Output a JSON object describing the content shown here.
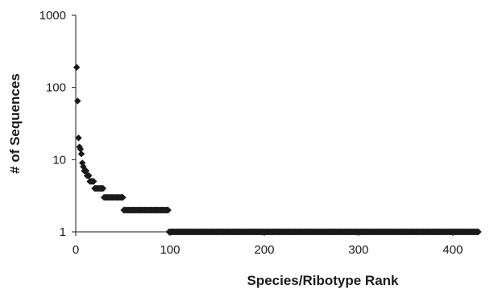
{
  "chart_data": {
    "type": "scatter",
    "title": "",
    "xlabel": "Species/Ribotype Rank",
    "ylabel": "# of Sequences",
    "x_scale": "linear",
    "y_scale": "log",
    "xlim": [
      0,
      430
    ],
    "ylim": [
      1,
      1000
    ],
    "x_ticks": [
      0,
      100,
      200,
      300,
      400
    ],
    "x_tick_labels": [
      "0",
      "100",
      "200",
      "300",
      "400"
    ],
    "y_ticks": [
      1,
      10,
      100,
      1000
    ],
    "y_tick_labels": [
      "1",
      "10",
      "100",
      "1000"
    ],
    "grid": false,
    "legend": "none",
    "marker": "diamond",
    "marker_color": "#1a1a1a",
    "points": [
      {
        "x": 1,
        "y": 190
      },
      {
        "x": 2,
        "y": 65
      },
      {
        "x": 3,
        "y": 20
      },
      {
        "x": 4,
        "y": 15
      },
      {
        "x": 5,
        "y": 14
      },
      {
        "x": 6,
        "y": 12
      },
      {
        "x": 7,
        "y": 9
      },
      {
        "x": 8,
        "y": 8
      },
      {
        "x": 9,
        "y": 7
      },
      {
        "x": 10,
        "y": 7
      },
      {
        "x": 11,
        "y": 7
      },
      {
        "x": 12,
        "y": 6
      },
      {
        "x": 13,
        "y": 6
      },
      {
        "x": 14,
        "y": 6
      },
      {
        "x": 15,
        "y": 5
      },
      {
        "x": 16,
        "y": 5
      },
      {
        "x": 17,
        "y": 5
      },
      {
        "x": 18,
        "y": 5
      },
      {
        "x": 19,
        "y": 5
      },
      {
        "x": 20,
        "y": 4
      }
    ],
    "plateaus": [
      {
        "y": 4,
        "x_start": 21,
        "x_end": 29
      },
      {
        "y": 3,
        "x_start": 30,
        "x_end": 50
      },
      {
        "y": 2,
        "x_start": 51,
        "x_end": 98
      },
      {
        "y": 1,
        "x_start": 99,
        "x_end": 427
      }
    ]
  }
}
